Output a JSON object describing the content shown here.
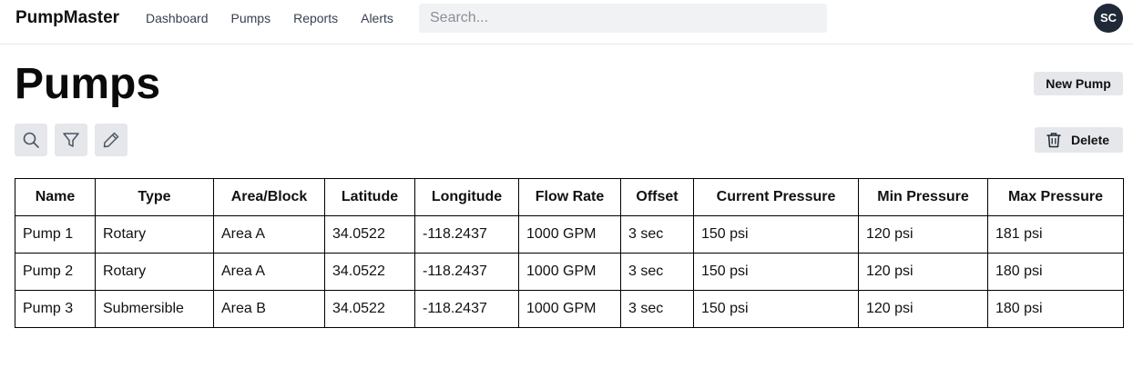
{
  "app": {
    "name": "PumpMaster"
  },
  "nav": [
    {
      "label": "Dashboard"
    },
    {
      "label": "Pumps"
    },
    {
      "label": "Reports"
    },
    {
      "label": "Alerts"
    }
  ],
  "search": {
    "placeholder": "Search..."
  },
  "user": {
    "initials": "SC"
  },
  "page": {
    "title": "Pumps"
  },
  "actions": {
    "new_label": "New Pump",
    "delete_label": "Delete"
  },
  "toolbar_icons": [
    "search-icon",
    "filter-icon",
    "pencil-icon"
  ],
  "table": {
    "columns": [
      "Name",
      "Type",
      "Area/Block",
      "Latitude",
      "Longitude",
      "Flow Rate",
      "Offset",
      "Current Pressure",
      "Min Pressure",
      "Max Pressure"
    ],
    "rows": [
      [
        "Pump 1",
        "Rotary",
        "Area A",
        "34.0522",
        "-118.2437",
        "1000 GPM",
        "3 sec",
        "150 psi",
        "120 psi",
        "181 psi"
      ],
      [
        "Pump 2",
        "Rotary",
        "Area A",
        "34.0522",
        "-118.2437",
        "1000 GPM",
        "3 sec",
        "150 psi",
        "120 psi",
        "180 psi"
      ],
      [
        "Pump 3",
        "Submersible",
        "Area B",
        "34.0522",
        "-118.2437",
        "1000 GPM",
        "3 sec",
        "150 psi",
        "120 psi",
        "180 psi"
      ]
    ]
  },
  "colors": {
    "avatar_bg": "#1f2937",
    "button_bg": "#e5e7eb",
    "search_bg": "#f1f2f4"
  }
}
